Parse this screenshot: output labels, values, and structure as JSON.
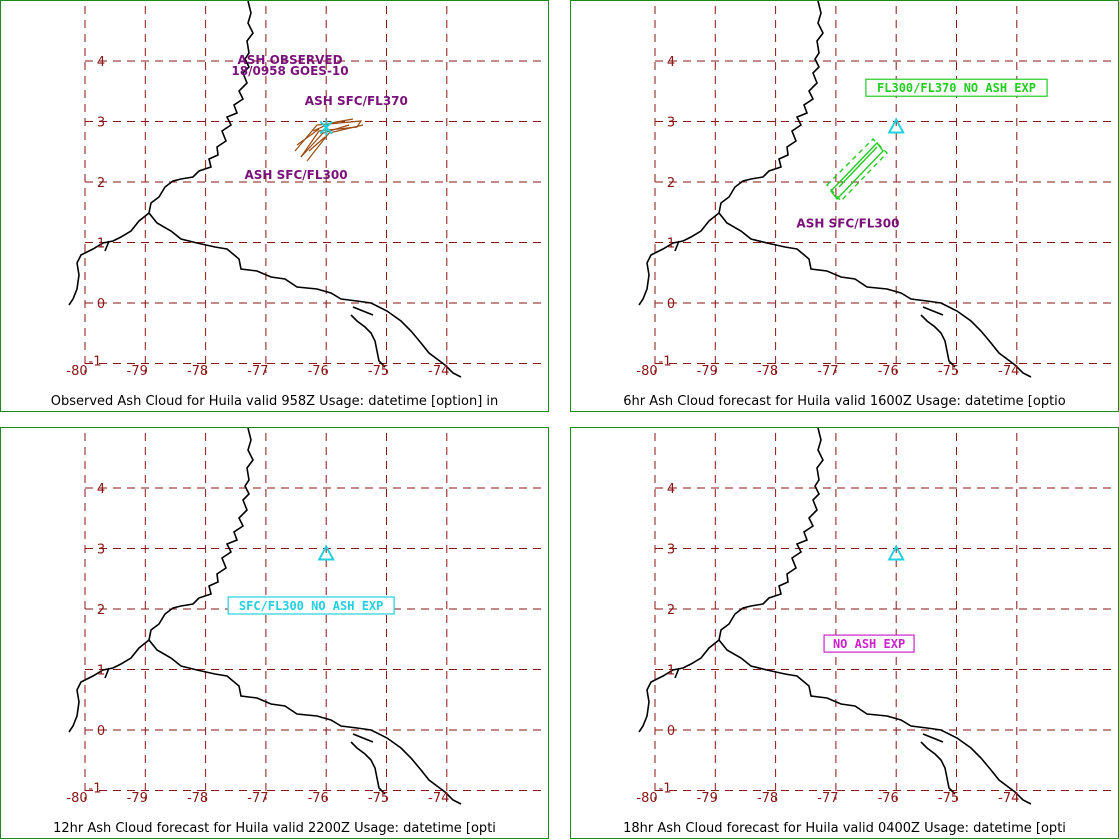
{
  "colors": {
    "grid": "#8a1515",
    "tick_label": "#8a1515",
    "coast": "#000000",
    "label_purple": "#7a107a",
    "cloud_brown": "#9a4a10",
    "cloud_green": "#22cc22",
    "volcano_cyan": "#22d0e0",
    "magenta_box": "#cc22cc",
    "border_green": "#1a8a1a"
  },
  "axes": {
    "x_ticks": [
      "-80",
      "-79",
      "-78",
      "-77",
      "-76",
      "-75",
      "-74"
    ],
    "y_ticks": [
      "-1",
      "0",
      "1",
      "2",
      "3",
      "4"
    ]
  },
  "volcano": {
    "lon": -76.0,
    "lat": 2.9,
    "icon": "triangle-icon"
  },
  "panels": [
    {
      "caption": "Observed Ash Cloud for Huila valid 958Z Usage: datetime [option] in",
      "labels": [
        {
          "text": "ASH OBSERVED",
          "lon": -76.6,
          "lat": 3.95,
          "color": "label_purple"
        },
        {
          "text": "18/0958 GOES-10",
          "lon": -76.6,
          "lat": 3.77,
          "color": "label_purple"
        },
        {
          "text": "ASH SFC/FL370",
          "lon": -75.5,
          "lat": 3.27,
          "color": "label_purple"
        },
        {
          "text": "ASH SFC/FL300",
          "lon": -76.5,
          "lat": 2.05,
          "color": "label_purple"
        }
      ],
      "boxes": [],
      "cloud": "observed"
    },
    {
      "caption": "6hr Ash Cloud forecast for Huila valid 1600Z Usage: datetime [optio",
      "labels": [
        {
          "text": "ASH SFC/FL300",
          "lon": -76.8,
          "lat": 1.25,
          "color": "label_purple"
        }
      ],
      "boxes": [
        {
          "text": "FL300/FL370 NO ASH EXP",
          "lon": -75.0,
          "lat": 3.55,
          "color": "cloud_green"
        }
      ],
      "cloud": "forecast6"
    },
    {
      "caption": "12hr Ash Cloud forecast for Huila valid 2200Z Usage: datetime [opti",
      "labels": [],
      "boxes": [
        {
          "text": "SFC/FL300 NO ASH EXP",
          "lon": -76.25,
          "lat": 2.05,
          "color": "volcano_cyan"
        }
      ],
      "cloud": "none"
    },
    {
      "caption": "18hr Ash Cloud forecast for Huila valid 0400Z Usage: datetime [opti",
      "labels": [],
      "boxes": [
        {
          "text": "NO ASH EXP",
          "lon": -76.45,
          "lat": 1.42,
          "color": "magenta_box"
        }
      ],
      "cloud": "none"
    }
  ]
}
